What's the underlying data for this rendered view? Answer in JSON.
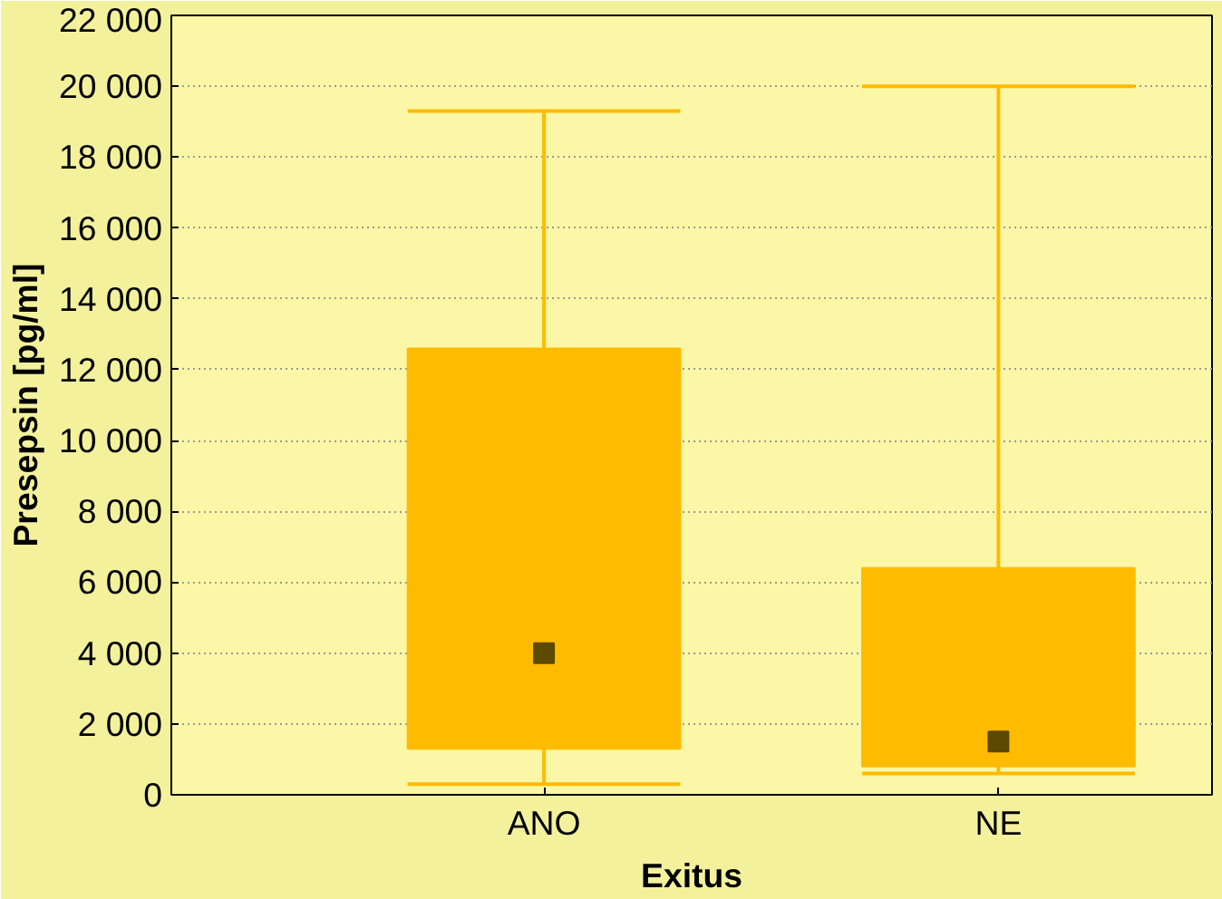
{
  "chart_data": {
    "type": "box",
    "xlabel": "Exitus",
    "ylabel": "Presepsin [pg/ml]",
    "categories": [
      "ANO",
      "NE"
    ],
    "boxes": [
      {
        "low": 300,
        "q1": 1300,
        "median": 4000,
        "q3": 12600,
        "high": 19300
      },
      {
        "low": 600,
        "q1": 800,
        "median": 1500,
        "q3": 6400,
        "high": 20000
      }
    ],
    "color": "#ffbb00",
    "marker": "square",
    "ylim": [
      0,
      22000
    ],
    "yticks": [
      {
        "value": 0,
        "label": "0"
      },
      {
        "value": 2000,
        "label": "2 000"
      },
      {
        "value": 4000,
        "label": "4 000"
      },
      {
        "value": 6000,
        "label": "6 000"
      },
      {
        "value": 8000,
        "label": "8 000"
      },
      {
        "value": 10000,
        "label": "10 000"
      },
      {
        "value": 12000,
        "label": "12 000"
      },
      {
        "value": 14000,
        "label": "14 000"
      },
      {
        "value": 16000,
        "label": "16 000"
      },
      {
        "value": 18000,
        "label": "18 000"
      },
      {
        "value": 20000,
        "label": "20 000"
      },
      {
        "value": 22000,
        "label": "22 000"
      }
    ],
    "grid": "y"
  }
}
